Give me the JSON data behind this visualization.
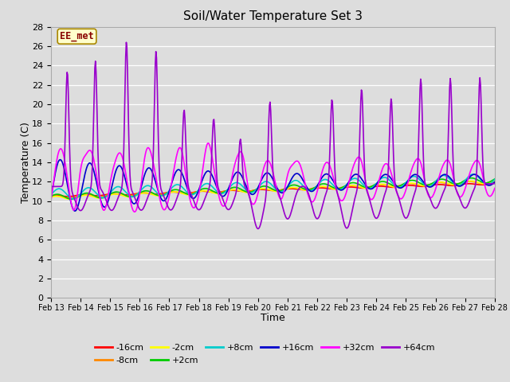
{
  "title": "Soil/Water Temperature Set 3",
  "xlabel": "Time",
  "ylabel": "Temperature (C)",
  "xlim": [
    0,
    15
  ],
  "ylim": [
    0,
    28
  ],
  "yticks": [
    0,
    2,
    4,
    6,
    8,
    10,
    12,
    14,
    16,
    18,
    20,
    22,
    24,
    26,
    28
  ],
  "xtick_labels": [
    "Feb 13",
    "Feb 14",
    "Feb 15",
    "Feb 16",
    "Feb 17",
    "Feb 18",
    "Feb 19",
    "Feb 20",
    "Feb 21",
    "Feb 22",
    "Feb 23",
    "Feb 24",
    "Feb 25",
    "Feb 26",
    "Feb 27",
    "Feb 28"
  ],
  "background_color": "#dddddd",
  "plot_bg": "#dddddd",
  "grid_color": "#ffffff",
  "label_box": "EE_met",
  "series": {
    "-16cm": {
      "color": "#ff0000",
      "lw": 1.2
    },
    "-8cm": {
      "color": "#ff8800",
      "lw": 1.2
    },
    "-2cm": {
      "color": "#ffff00",
      "lw": 1.2
    },
    "+2cm": {
      "color": "#00cc00",
      "lw": 1.2
    },
    "+8cm": {
      "color": "#00cccc",
      "lw": 1.2
    },
    "+16cm": {
      "color": "#0000cc",
      "lw": 1.2
    },
    "+32cm": {
      "color": "#ff00ff",
      "lw": 1.2
    },
    "+64cm": {
      "color": "#9900cc",
      "lw": 1.2
    }
  },
  "legend_ncol1": 6,
  "legend_ncol2": 2,
  "legend_order": [
    "-16cm",
    "-8cm",
    "-2cm",
    "+2cm",
    "+8cm",
    "+16cm",
    "+32cm",
    "+64cm"
  ]
}
